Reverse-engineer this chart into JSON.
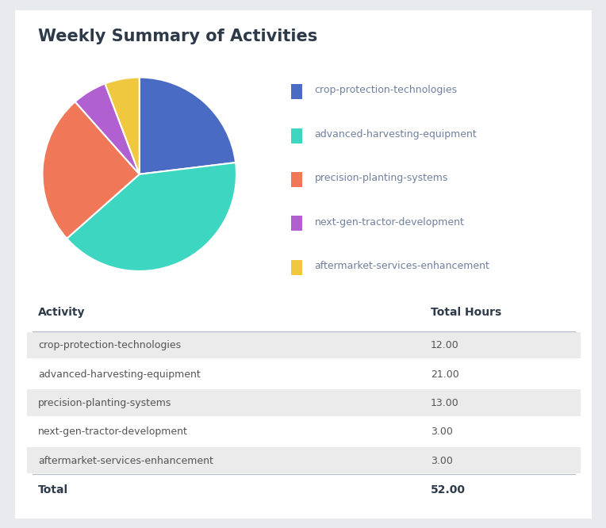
{
  "title": "Weekly Summary of Activities",
  "activities": [
    "crop-protection-technologies",
    "advanced-harvesting-equipment",
    "precision-planting-systems",
    "next-gen-tractor-development",
    "aftermarket-services-enhancement"
  ],
  "hours": [
    12.0,
    21.0,
    13.0,
    3.0,
    3.0
  ],
  "total": 52.0,
  "colors": [
    "#4a6bc4",
    "#3dd6c0",
    "#f07858",
    "#b060d0",
    "#f0c840"
  ],
  "background_color": "#e8eaed",
  "card_color": "#ffffff",
  "title_color": "#2d3a4a",
  "table_header_color": "#2d3a4a",
  "table_row_alt_color": "#ebebeb",
  "table_row_color": "#ffffff",
  "table_text_color": "#555555",
  "legend_text_color": "#7080a0",
  "col1_header": "Activity",
  "col2_header": "Total Hours",
  "title_fontsize": 15,
  "legend_fontsize": 9,
  "table_fontsize": 9,
  "header_fontsize": 10
}
